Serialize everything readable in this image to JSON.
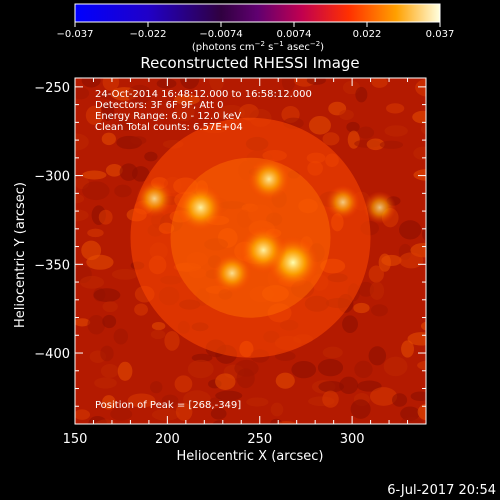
{
  "colorbar": {
    "ticks": [
      "−0.037",
      "−0.022",
      "−0.0074",
      "0.0074",
      "0.022",
      "0.037"
    ],
    "label": "(photons cm",
    "label_exp1": "−2",
    "label_mid": " s",
    "label_exp2": "−1",
    "label_end": " asec",
    "label_exp3": "−2",
    "label_close": ")"
  },
  "chart_data": {
    "type": "heatmap",
    "title": "Reconstructed RHESSI Image",
    "xlabel": "Heliocentric X (arcsec)",
    "ylabel": "Heliocentric Y (arcsec)",
    "xlim": [
      150,
      340
    ],
    "ylim": [
      -440,
      -245
    ],
    "x_ticks": [
      150,
      200,
      250,
      300
    ],
    "y_ticks": [
      -250,
      -300,
      -350,
      -400
    ],
    "colorbar_range": [
      -0.037,
      0.037
    ],
    "annotations": [
      "24-Oct-2014 16:48:12.000 to 16:58:12.000",
      "Detectors: 3F 6F 9F, Att 0",
      "Energy Range: 6.0 - 12.0 keV",
      "Clean     Total counts: 6.57E+04"
    ],
    "peak_text": "Position of Peak = [268,-349]",
    "peak": [
      268,
      -349
    ],
    "sources": [
      {
        "x": 268,
        "y": -349,
        "intensity": 1.0
      },
      {
        "x": 252,
        "y": -342,
        "intensity": 0.8
      },
      {
        "x": 255,
        "y": -302,
        "intensity": 0.65
      },
      {
        "x": 218,
        "y": -318,
        "intensity": 0.8
      },
      {
        "x": 235,
        "y": -355,
        "intensity": 0.55
      },
      {
        "x": 193,
        "y": -313,
        "intensity": 0.45
      },
      {
        "x": 295,
        "y": -315,
        "intensity": 0.35
      },
      {
        "x": 315,
        "y": -318,
        "intensity": 0.3
      }
    ]
  },
  "footer": {
    "date": "6-Jul-2017 20:54"
  }
}
